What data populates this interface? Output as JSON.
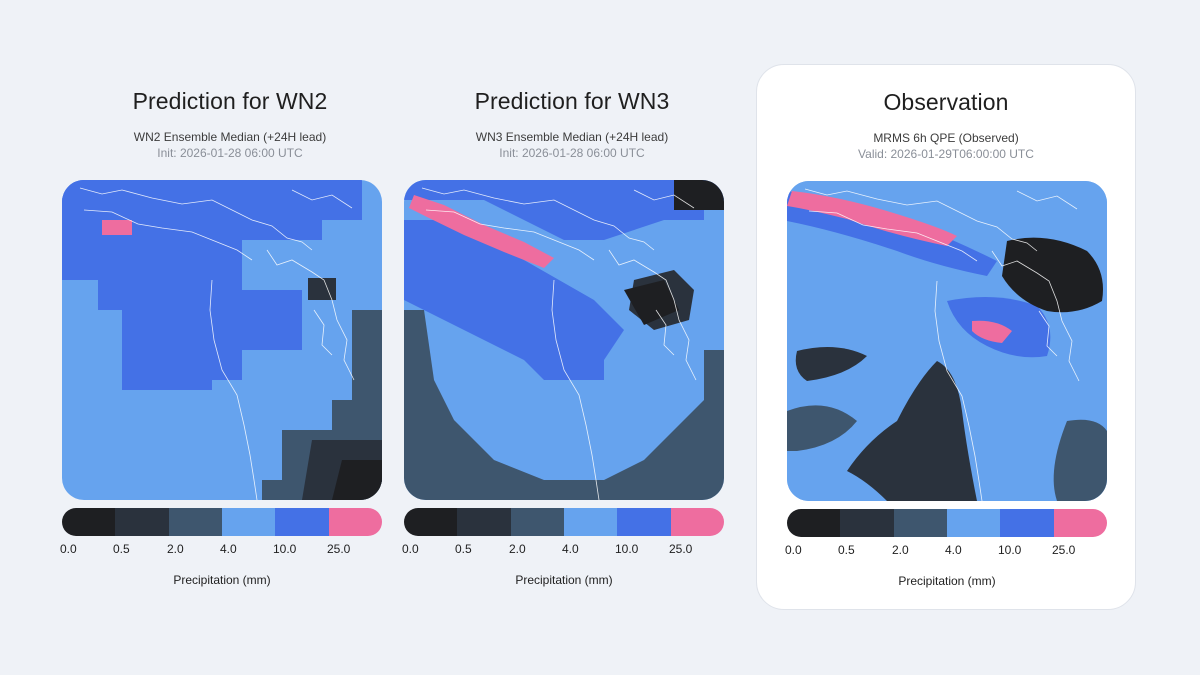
{
  "colorscale": {
    "colors": [
      "#1e1f22",
      "#2a323d",
      "#3e566e",
      "#66a3ee",
      "#4471e6",
      "#ee6d9f"
    ],
    "boundaries": [
      "0.0",
      "0.5",
      "2.0",
      "4.0",
      "10.0",
      "25.0"
    ],
    "label": "Precipitation (mm)"
  },
  "panels": [
    {
      "title": "Prediction for WN2",
      "subtitle": "WN2 Ensemble Median (+24H lead)",
      "meta": "Init: 2026-01-28 06:00 UTC"
    },
    {
      "title": "Prediction for WN3",
      "subtitle": "WN3 Ensemble Median (+24H lead)",
      "meta": "Init: 2026-01-28 06:00 UTC"
    },
    {
      "title": "Observation",
      "subtitle": "MRMS 6h QPE (Observed)",
      "meta": "Valid: 2026-01-29T06:00:00 UTC"
    }
  ],
  "chart_data": [
    {
      "type": "heatmap",
      "title": "Prediction for WN2",
      "subtitle": "WN2 Ensemble Median (+24H lead)",
      "colorbar_label": "Precipitation (mm)",
      "bins": [
        "0.0",
        "0.5",
        "2.0",
        "4.0",
        "10.0",
        "25.0"
      ]
    },
    {
      "type": "heatmap",
      "title": "Prediction for WN3",
      "subtitle": "WN3 Ensemble Median (+24H lead)",
      "colorbar_label": "Precipitation (mm)",
      "bins": [
        "0.0",
        "0.5",
        "2.0",
        "4.0",
        "10.0",
        "25.0"
      ]
    },
    {
      "type": "heatmap",
      "title": "Observation",
      "subtitle": "MRMS 6h QPE (Observed)",
      "colorbar_label": "Precipitation (mm)",
      "bins": [
        "0.0",
        "0.5",
        "2.0",
        "4.0",
        "10.0",
        "25.0"
      ]
    }
  ]
}
